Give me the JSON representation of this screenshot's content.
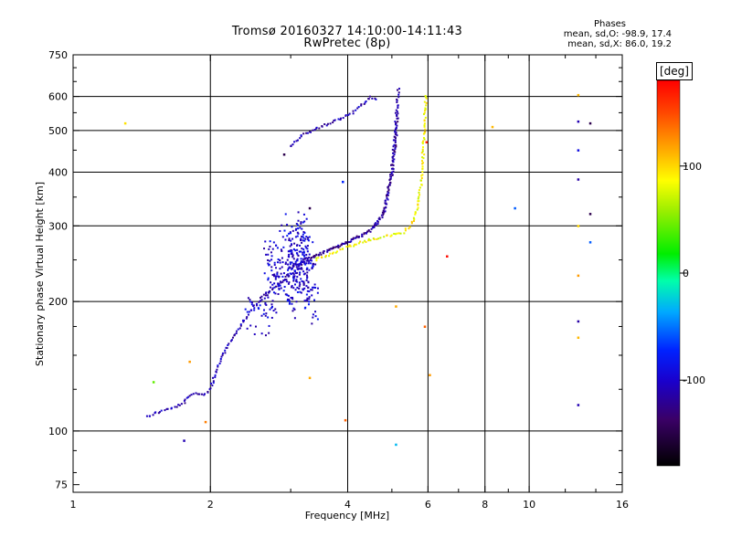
{
  "chart_data": {
    "type": "scatter",
    "title": "Tromsø 20160327 14:10:00-14:11:43",
    "subtitle": "RwPretec (8p)",
    "xlabel": "Frequency [MHz]",
    "ylabel": "Stationary phase Virtual Height [km]",
    "x_scale": "log",
    "y_scale": "log",
    "xlim": [
      1,
      16
    ],
    "ylim": [
      72,
      750
    ],
    "x_ticks": [
      1,
      2,
      4,
      6,
      8,
      10,
      16
    ],
    "y_ticks": [
      75,
      100,
      200,
      300,
      400,
      500,
      600,
      750
    ],
    "x_grid": [
      2,
      4,
      6,
      8,
      10
    ],
    "y_grid": [
      100,
      200,
      300,
      400,
      500,
      600
    ],
    "grid": true,
    "colorbar": {
      "label": "[deg]",
      "range": [
        -180,
        180
      ],
      "ticks": [
        100,
        0,
        -100
      ]
    },
    "phase_stats": {
      "header": "Phases",
      "o_line": "mean, sd,O: -98.9, 17.4",
      "x_line": "mean, sd,X:  86.0, 19.2"
    },
    "traces": [
      {
        "name": "o_lower",
        "phase": -110,
        "points": [
          [
            1.45,
            108
          ],
          [
            1.55,
            111
          ],
          [
            1.65,
            113
          ],
          [
            1.75,
            116
          ],
          [
            1.8,
            121
          ],
          [
            1.85,
            122
          ],
          [
            1.95,
            122
          ],
          [
            2.0,
            125
          ],
          [
            2.05,
            135
          ],
          [
            2.1,
            145
          ],
          [
            2.2,
            160
          ],
          [
            2.3,
            172
          ],
          [
            2.4,
            185
          ],
          [
            2.5,
            195
          ],
          [
            2.6,
            205
          ]
        ]
      },
      {
        "name": "o_upper",
        "phase": -115,
        "points": [
          [
            2.6,
            205
          ],
          [
            2.8,
            218
          ],
          [
            3.0,
            232
          ],
          [
            3.2,
            245
          ],
          [
            3.4,
            255
          ],
          [
            3.6,
            262
          ],
          [
            3.8,
            268
          ],
          [
            4.0,
            275
          ],
          [
            4.2,
            282
          ],
          [
            4.4,
            290
          ],
          [
            4.6,
            300
          ],
          [
            4.75,
            315
          ],
          [
            4.85,
            335
          ],
          [
            4.95,
            380
          ],
          [
            5.05,
            450
          ],
          [
            5.1,
            520
          ],
          [
            5.15,
            600
          ],
          [
            5.18,
            630
          ]
        ]
      },
      {
        "name": "o_upper_outer",
        "phase": -120,
        "points": [
          [
            3.0,
            240
          ],
          [
            3.3,
            252
          ],
          [
            3.7,
            266
          ],
          [
            4.1,
            278
          ],
          [
            4.5,
            292
          ],
          [
            4.8,
            322
          ],
          [
            5.0,
            395
          ],
          [
            5.1,
            480
          ],
          [
            5.15,
            560
          ]
        ]
      },
      {
        "name": "f2_high",
        "phase": -110,
        "points": [
          [
            3.0,
            460
          ],
          [
            3.2,
            490
          ],
          [
            3.5,
            510
          ],
          [
            3.8,
            530
          ],
          [
            4.1,
            550
          ],
          [
            4.3,
            575
          ],
          [
            4.5,
            600
          ],
          [
            4.65,
            585
          ]
        ]
      },
      {
        "name": "x_trace",
        "phase": 85,
        "points": [
          [
            3.4,
            250
          ],
          [
            3.7,
            258
          ],
          [
            4.0,
            268
          ],
          [
            4.3,
            275
          ],
          [
            4.6,
            280
          ],
          [
            5.0,
            285
          ],
          [
            5.3,
            290
          ],
          [
            5.5,
            300
          ],
          [
            5.7,
            330
          ],
          [
            5.8,
            380
          ],
          [
            5.85,
            440
          ],
          [
            5.9,
            520
          ],
          [
            5.95,
            610
          ]
        ]
      },
      {
        "name": "spread_cloud",
        "phase": -100,
        "points": [
          [
            2.4,
            190
          ],
          [
            2.6,
            180
          ],
          [
            2.8,
            230
          ],
          [
            2.7,
            260
          ],
          [
            3.0,
            200
          ],
          [
            3.1,
            250
          ],
          [
            3.2,
            300
          ],
          [
            3.3,
            220
          ],
          [
            2.9,
            290
          ],
          [
            3.4,
            190
          ]
        ]
      }
    ],
    "isolated_points": [
      {
        "x": 1.3,
        "y": 520,
        "phase": 95
      },
      {
        "x": 1.5,
        "y": 130,
        "phase": 40
      },
      {
        "x": 1.8,
        "y": 145,
        "phase": 120
      },
      {
        "x": 1.75,
        "y": 95,
        "phase": -110
      },
      {
        "x": 1.95,
        "y": 105,
        "phase": 130
      },
      {
        "x": 2.9,
        "y": 440,
        "phase": -150
      },
      {
        "x": 3.3,
        "y": 330,
        "phase": -150
      },
      {
        "x": 3.3,
        "y": 133,
        "phase": 115
      },
      {
        "x": 3.9,
        "y": 380,
        "phase": -75
      },
      {
        "x": 3.95,
        "y": 106,
        "phase": 140
      },
      {
        "x": 5.1,
        "y": 195,
        "phase": 115
      },
      {
        "x": 5.1,
        "y": 93,
        "phase": -35
      },
      {
        "x": 5.9,
        "y": 175,
        "phase": 140
      },
      {
        "x": 5.95,
        "y": 470,
        "phase": 165
      },
      {
        "x": 6.05,
        "y": 135,
        "phase": 120
      },
      {
        "x": 6.6,
        "y": 255,
        "phase": 175
      },
      {
        "x": 8.3,
        "y": 510,
        "phase": 110
      },
      {
        "x": 9.3,
        "y": 330,
        "phase": -60
      },
      {
        "x": 12.8,
        "y": 605,
        "phase": 110
      },
      {
        "x": 12.8,
        "y": 525,
        "phase": -110
      },
      {
        "x": 12.8,
        "y": 450,
        "phase": -90
      },
      {
        "x": 12.8,
        "y": 385,
        "phase": -115
      },
      {
        "x": 12.8,
        "y": 300,
        "phase": 100
      },
      {
        "x": 12.8,
        "y": 230,
        "phase": 120
      },
      {
        "x": 12.8,
        "y": 180,
        "phase": -115
      },
      {
        "x": 12.8,
        "y": 165,
        "phase": 110
      },
      {
        "x": 12.8,
        "y": 115,
        "phase": -110
      },
      {
        "x": 13.6,
        "y": 520,
        "phase": -150
      },
      {
        "x": 13.6,
        "y": 320,
        "phase": -150
      },
      {
        "x": 13.6,
        "y": 275,
        "phase": -60
      }
    ]
  }
}
